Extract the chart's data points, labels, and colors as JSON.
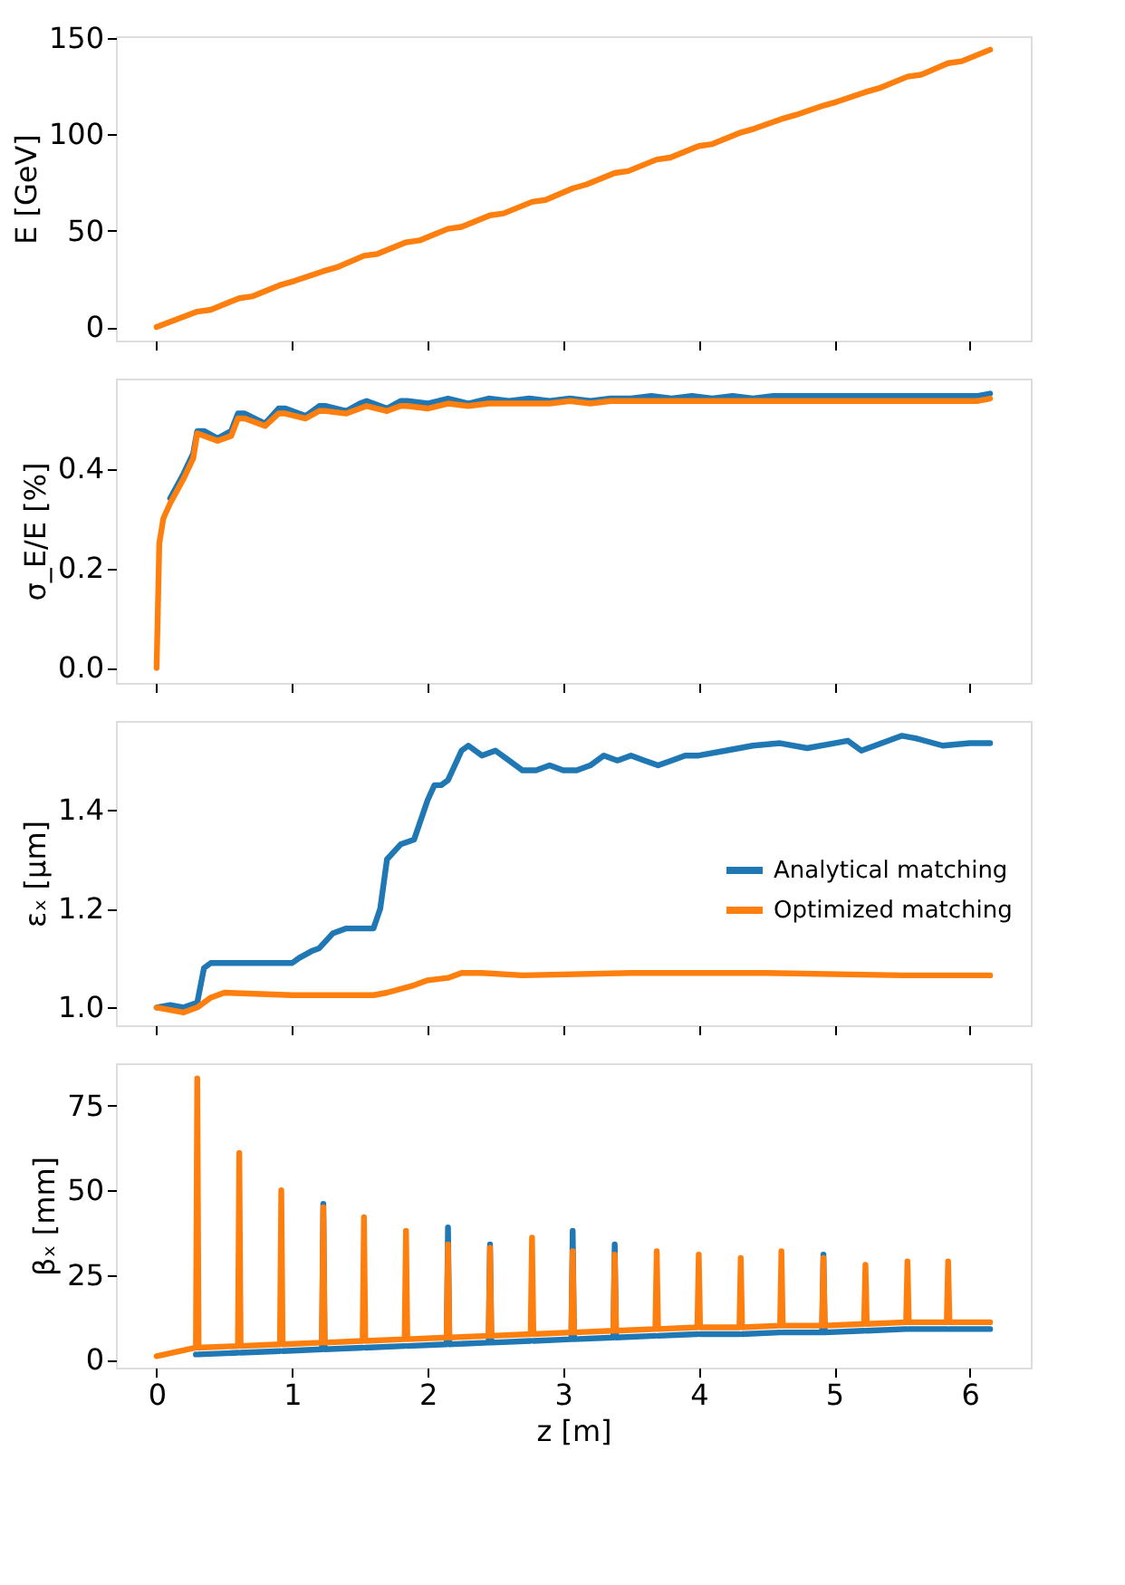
{
  "chart_data": [
    {
      "type": "line",
      "ylabel": "E [GeV]",
      "xlim": [
        -0.3,
        6.45
      ],
      "xticks": [
        0,
        1,
        2,
        3,
        4,
        5,
        6
      ],
      "ylim": [
        -7,
        151
      ],
      "yticks": [
        0,
        50,
        100,
        150
      ],
      "tick_labels": "y",
      "grid": false,
      "line_style": "solid",
      "series": [
        {
          "color": "#ff7f0e",
          "x": [
            0,
            0.3,
            0.4,
            0.61,
            0.71,
            0.92,
            1.02,
            1.23,
            1.33,
            1.53,
            1.63,
            1.84,
            1.94,
            2.15,
            2.25,
            2.46,
            2.56,
            2.77,
            2.87,
            3.07,
            3.17,
            3.38,
            3.48,
            3.69,
            3.79,
            4.0,
            4.1,
            4.31,
            4.41,
            4.61,
            4.71,
            4.92,
            5.02,
            5.23,
            5.33,
            5.54,
            5.64,
            5.84,
            5.94,
            6.15
          ],
          "values": [
            0,
            8,
            9,
            15,
            16,
            22,
            24,
            29,
            31,
            37,
            38,
            44,
            45,
            51,
            52,
            58,
            59,
            65,
            66,
            72,
            74,
            80,
            81,
            87,
            88,
            94,
            95,
            101,
            103,
            108,
            110,
            115,
            117,
            122,
            124,
            130,
            131,
            137,
            138,
            144
          ]
        }
      ]
    },
    {
      "type": "line",
      "ylabel": "σ_E/E [%]",
      "xlim": [
        -0.3,
        6.45
      ],
      "xticks": [
        0,
        1,
        2,
        3,
        4,
        5,
        6
      ],
      "ylim": [
        -0.03,
        0.58
      ],
      "yticks": [
        {
          "value": 0,
          "label": "0.0"
        },
        0.2,
        0.4
      ],
      "tick_labels": "y",
      "grid": false,
      "line_style": "solid",
      "series": [
        {
          "color": "#1f77b4",
          "x": [
            0.1,
            0.2,
            0.27,
            0.3,
            0.35,
            0.45,
            0.55,
            0.6,
            0.65,
            0.8,
            0.9,
            0.95,
            1.1,
            1.2,
            1.25,
            1.4,
            1.5,
            1.55,
            1.7,
            1.8,
            1.85,
            2.0,
            2.15,
            2.3,
            2.45,
            2.6,
            2.75,
            2.9,
            3.05,
            3.2,
            3.35,
            3.5,
            3.65,
            3.8,
            3.95,
            4.1,
            4.25,
            4.4,
            4.55,
            4.7,
            4.85,
            5.0,
            5.15,
            5.3,
            5.45,
            5.6,
            5.75,
            5.9,
            6.05,
            6.15
          ],
          "values": [
            0.34,
            0.39,
            0.43,
            0.475,
            0.475,
            0.46,
            0.475,
            0.51,
            0.51,
            0.49,
            0.52,
            0.52,
            0.505,
            0.525,
            0.525,
            0.515,
            0.53,
            0.535,
            0.52,
            0.535,
            0.535,
            0.53,
            0.54,
            0.53,
            0.54,
            0.535,
            0.54,
            0.535,
            0.54,
            0.535,
            0.54,
            0.54,
            0.545,
            0.54,
            0.545,
            0.54,
            0.545,
            0.54,
            0.545,
            0.545,
            0.545,
            0.545,
            0.545,
            0.545,
            0.545,
            0.545,
            0.545,
            0.545,
            0.545,
            0.55
          ]
        },
        {
          "color": "#ff7f0e",
          "x": [
            0,
            0.02,
            0.05,
            0.1,
            0.2,
            0.27,
            0.3,
            0.35,
            0.45,
            0.55,
            0.6,
            0.65,
            0.8,
            0.9,
            0.95,
            1.1,
            1.2,
            1.25,
            1.4,
            1.5,
            1.55,
            1.7,
            1.8,
            1.85,
            2.0,
            2.15,
            2.3,
            2.45,
            2.6,
            2.75,
            2.9,
            3.05,
            3.2,
            3.35,
            3.5,
            3.65,
            3.8,
            3.95,
            4.1,
            4.25,
            4.4,
            4.55,
            4.7,
            4.85,
            5.0,
            5.15,
            5.3,
            5.45,
            5.6,
            5.75,
            5.9,
            6.05,
            6.15
          ],
          "values": [
            0,
            0.25,
            0.3,
            0.33,
            0.38,
            0.42,
            0.47,
            0.465,
            0.455,
            0.465,
            0.5,
            0.5,
            0.485,
            0.51,
            0.51,
            0.5,
            0.515,
            0.515,
            0.51,
            0.52,
            0.525,
            0.515,
            0.525,
            0.525,
            0.52,
            0.53,
            0.525,
            0.53,
            0.53,
            0.53,
            0.53,
            0.535,
            0.53,
            0.535,
            0.535,
            0.535,
            0.535,
            0.535,
            0.535,
            0.535,
            0.535,
            0.535,
            0.535,
            0.535,
            0.535,
            0.535,
            0.535,
            0.535,
            0.535,
            0.535,
            0.535,
            0.535,
            0.54
          ]
        }
      ]
    },
    {
      "type": "line",
      "ylabel": "εₓ [μm]",
      "xlim": [
        -0.3,
        6.45
      ],
      "xticks": [
        0,
        1,
        2,
        3,
        4,
        5,
        6
      ],
      "ylim": [
        0.964,
        1.58
      ],
      "yticks": [
        {
          "value": 1,
          "label": "1.0"
        },
        1.2,
        1.4
      ],
      "tick_labels": "y",
      "grid": false,
      "legend": "right",
      "line_style": "solid",
      "series": [
        {
          "name": "Analytical matching",
          "color": "#1f77b4",
          "x": [
            0,
            0.1,
            0.2,
            0.3,
            0.35,
            0.4,
            1.0,
            1.05,
            1.15,
            1.2,
            1.3,
            1.4,
            1.6,
            1.65,
            1.7,
            1.8,
            1.9,
            2.0,
            2.05,
            2.1,
            2.15,
            2.25,
            2.3,
            2.4,
            2.5,
            2.6,
            2.7,
            2.8,
            2.9,
            3.0,
            3.1,
            3.2,
            3.3,
            3.4,
            3.5,
            3.6,
            3.7,
            3.8,
            3.9,
            4.0,
            4.2,
            4.4,
            4.6,
            4.8,
            5.0,
            5.1,
            5.2,
            5.4,
            5.5,
            5.6,
            5.8,
            6.0,
            6.15
          ],
          "values": [
            1.0,
            1.005,
            1.0,
            1.01,
            1.08,
            1.09,
            1.09,
            1.1,
            1.115,
            1.12,
            1.15,
            1.16,
            1.16,
            1.2,
            1.3,
            1.33,
            1.34,
            1.42,
            1.45,
            1.45,
            1.46,
            1.52,
            1.53,
            1.51,
            1.52,
            1.5,
            1.48,
            1.48,
            1.49,
            1.48,
            1.48,
            1.49,
            1.51,
            1.5,
            1.51,
            1.5,
            1.49,
            1.5,
            1.51,
            1.51,
            1.52,
            1.53,
            1.535,
            1.525,
            1.535,
            1.54,
            1.52,
            1.54,
            1.55,
            1.545,
            1.53,
            1.535,
            1.535
          ]
        },
        {
          "name": "Optimized matching",
          "color": "#ff7f0e",
          "x": [
            0,
            0.2,
            0.3,
            0.4,
            0.5,
            1.0,
            1.6,
            1.7,
            1.9,
            2.0,
            2.15,
            2.25,
            2.4,
            2.7,
            3.5,
            4.0,
            4.5,
            5.5,
            6.15
          ],
          "values": [
            1.0,
            0.99,
            1.0,
            1.02,
            1.03,
            1.025,
            1.025,
            1.03,
            1.045,
            1.055,
            1.06,
            1.07,
            1.07,
            1.065,
            1.07,
            1.07,
            1.07,
            1.065,
            1.065
          ]
        }
      ]
    },
    {
      "type": "line",
      "xlabel": "z [m]",
      "ylabel": "βₓ [mm]",
      "xlim": [
        -0.3,
        6.45
      ],
      "xticks": [
        0,
        1,
        2,
        3,
        4,
        5,
        6
      ],
      "ylim": [
        -2.4,
        87.5
      ],
      "yticks": [
        0,
        25,
        50,
        75
      ],
      "grid": false,
      "line_style": "solid",
      "series": [
        {
          "color": "#1f77b4",
          "x": [
            0.29,
            0.3,
            0.31,
            0.6,
            0.61,
            0.62,
            0.91,
            0.92,
            0.93,
            1.22,
            1.23,
            1.24,
            1.52,
            1.53,
            1.54,
            1.83,
            1.84,
            1.85,
            2.14,
            2.15,
            2.16,
            2.45,
            2.46,
            2.47,
            2.76,
            2.77,
            2.78,
            3.06,
            3.07,
            3.08,
            3.37,
            3.38,
            3.39,
            3.68,
            3.69,
            3.7,
            3.99,
            4.0,
            4.01,
            4.3,
            4.31,
            4.32,
            4.6,
            4.61,
            4.62,
            4.91,
            4.92,
            4.93,
            5.22,
            5.23,
            5.24,
            5.53,
            5.54,
            5.55,
            5.83,
            5.84,
            5.85,
            6.15
          ],
          "values": [
            1.5,
            null,
            1.5,
            2,
            null,
            2,
            2.5,
            null,
            2.5,
            3,
            46,
            3,
            3.5,
            null,
            3.5,
            4,
            null,
            4,
            4.5,
            39,
            4.5,
            5,
            34,
            5,
            5.5,
            null,
            5.5,
            6,
            38,
            6,
            6.5,
            34,
            6.5,
            7,
            null,
            7,
            7.5,
            null,
            7.5,
            7.5,
            null,
            7.5,
            8,
            null,
            8,
            8,
            31,
            8,
            8.5,
            null,
            8.5,
            9,
            null,
            9,
            9,
            null,
            9,
            9
          ]
        },
        {
          "color": "#ff7f0e",
          "x": [
            0,
            0.29,
            0.3,
            0.31,
            0.6,
            0.61,
            0.62,
            0.91,
            0.92,
            0.93,
            1.22,
            1.23,
            1.24,
            1.52,
            1.53,
            1.54,
            1.83,
            1.84,
            1.85,
            2.14,
            2.15,
            2.16,
            2.45,
            2.46,
            2.47,
            2.76,
            2.77,
            2.78,
            3.06,
            3.07,
            3.08,
            3.37,
            3.38,
            3.39,
            3.68,
            3.69,
            3.7,
            3.99,
            4.0,
            4.01,
            4.3,
            4.31,
            4.32,
            4.6,
            4.61,
            4.62,
            4.91,
            4.92,
            4.93,
            5.22,
            5.23,
            5.24,
            5.53,
            5.54,
            5.55,
            5.83,
            5.84,
            5.85,
            6.15
          ],
          "values": [
            1,
            3.5,
            83,
            3.5,
            4,
            61,
            4,
            4.5,
            50,
            4.5,
            5,
            45,
            5,
            5.5,
            42,
            5.5,
            6,
            38,
            6,
            6.5,
            34,
            6.5,
            7,
            33,
            7,
            7.5,
            36,
            7.5,
            8,
            32,
            8,
            8.5,
            31,
            8.5,
            9,
            32,
            9,
            9.5,
            31,
            9.5,
            9.5,
            30,
            9.5,
            10,
            32,
            10,
            10,
            30,
            10,
            10.5,
            28,
            10.5,
            11,
            29,
            11,
            11,
            29,
            11,
            11
          ]
        }
      ]
    }
  ]
}
